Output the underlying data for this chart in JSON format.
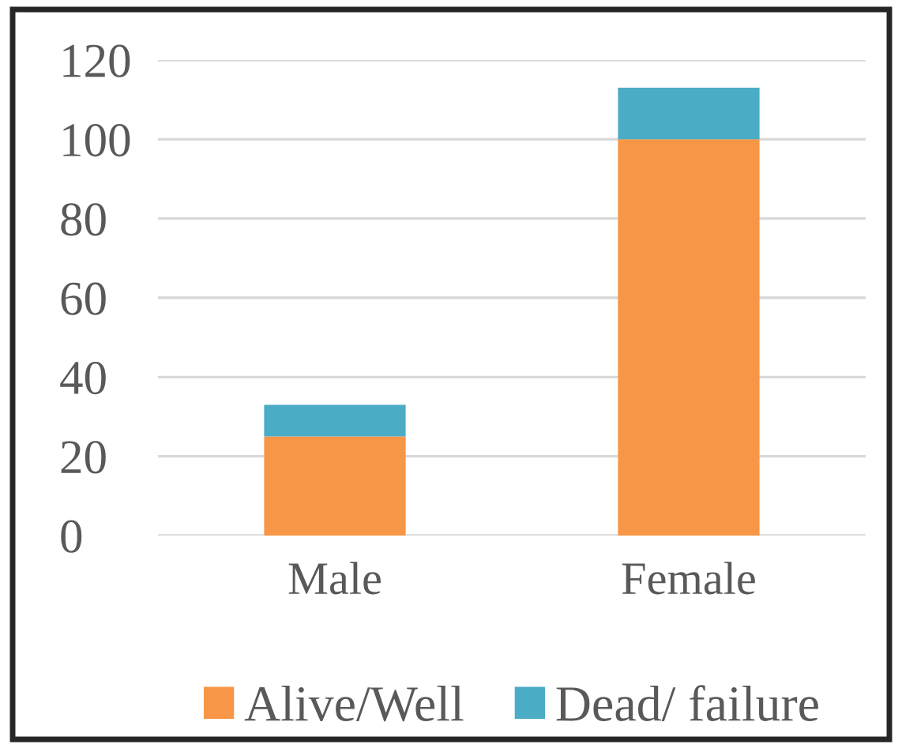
{
  "chart_data": {
    "type": "bar",
    "categories": [
      "Male",
      "Female"
    ],
    "series": [
      {
        "name": "Alive/Well",
        "color": "#f79646",
        "values": [
          25,
          100
        ]
      },
      {
        "name": "Dead/ failure",
        "color": "#4bacc6",
        "values": [
          8,
          13
        ]
      }
    ],
    "stacked": true,
    "ylim": [
      0,
      120
    ],
    "yticks": [
      0,
      20,
      40,
      60,
      80,
      100,
      120
    ],
    "grid": "y",
    "legend": "bottom"
  }
}
